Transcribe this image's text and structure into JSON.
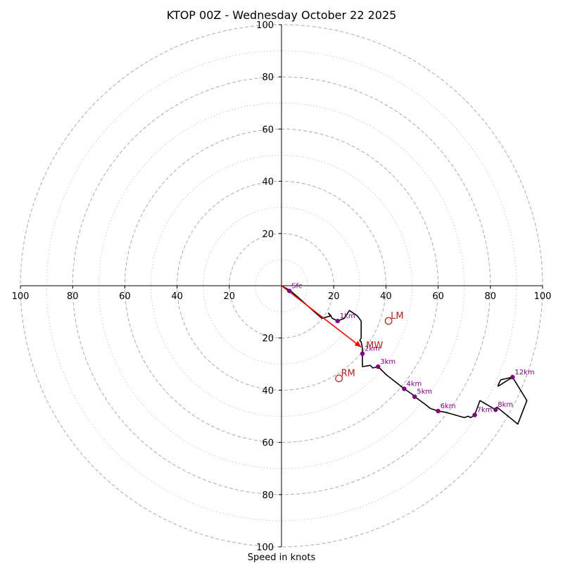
{
  "chart_data": {
    "type": "hodograph",
    "title": "KTOP 00Z - Wednesday October 22 2025",
    "xlabel": "Speed in knots",
    "units": "knots",
    "range": 100,
    "rings_major": [
      20,
      40,
      60,
      80,
      100
    ],
    "rings_minor": [
      10,
      30,
      50,
      70,
      90
    ],
    "x_ticks": [
      "100",
      "80",
      "60",
      "40",
      "20",
      "20",
      "40",
      "60",
      "80",
      "100"
    ],
    "x_tick_values": [
      -100,
      -80,
      -60,
      -40,
      -20,
      20,
      40,
      60,
      80,
      100
    ],
    "y_ticks_top": [
      "100",
      "80",
      "60",
      "40",
      "20"
    ],
    "y_ticks_top_values": [
      100,
      80,
      60,
      40,
      20
    ],
    "y_ticks_bottom": [
      "20",
      "40",
      "60",
      "80",
      "100"
    ],
    "y_ticks_bottom_values": [
      -20,
      -40,
      -60,
      -80,
      -100
    ],
    "trace": [
      [
        0,
        0
      ],
      [
        3.5,
        -2
      ],
      [
        7,
        -5
      ],
      [
        12,
        -9.5
      ],
      [
        15.5,
        -12.5
      ],
      [
        19,
        -11.5
      ],
      [
        18,
        -10.5
      ],
      [
        19.5,
        -12.5
      ],
      [
        21.5,
        -13.5
      ],
      [
        24,
        -12.5
      ],
      [
        26,
        -9.5
      ],
      [
        29,
        -11.5
      ],
      [
        30.5,
        -13.5
      ],
      [
        30.5,
        -20
      ],
      [
        30,
        -21
      ],
      [
        30.5,
        -21.5
      ],
      [
        31,
        -24
      ],
      [
        31,
        -26
      ],
      [
        31,
        -31
      ],
      [
        34,
        -30.5
      ],
      [
        35,
        -31.5
      ],
      [
        37,
        -31
      ],
      [
        40,
        -34
      ],
      [
        44.5,
        -37.5
      ],
      [
        47,
        -39.5
      ],
      [
        50,
        -41.5
      ],
      [
        51,
        -42.5
      ],
      [
        54.5,
        -45
      ],
      [
        57,
        -47
      ],
      [
        60,
        -48
      ],
      [
        63,
        -48.5
      ],
      [
        70,
        -50.5
      ],
      [
        71.5,
        -50
      ],
      [
        72.5,
        -50.5
      ],
      [
        74,
        -49.5
      ],
      [
        76,
        -44
      ],
      [
        82,
        -47.5
      ],
      [
        82.5,
        -46.5
      ],
      [
        90.5,
        -53
      ],
      [
        94,
        -44
      ],
      [
        88.5,
        -35
      ],
      [
        84,
        -36
      ],
      [
        83,
        -38
      ],
      [
        83,
        -38.5
      ],
      [
        88.5,
        -35
      ]
    ],
    "height_markers": [
      {
        "label": "Sfc",
        "u": 3,
        "v": -2
      },
      {
        "label": "1km",
        "u": 21.5,
        "v": -13.5
      },
      {
        "label": "2km",
        "u": 31,
        "v": -26
      },
      {
        "label": "3km",
        "u": 37,
        "v": -31
      },
      {
        "label": "4km",
        "u": 47,
        "v": -39.5
      },
      {
        "label": "5km",
        "u": 51,
        "v": -42.5
      },
      {
        "label": "6km",
        "u": 60,
        "v": -48
      },
      {
        "label": "7km",
        "u": 74,
        "v": -49.5
      },
      {
        "label": "8km",
        "u": 82,
        "v": -47.5
      },
      {
        "label": "12km",
        "u": 88.5,
        "v": -35
      }
    ],
    "storm_motion": [
      {
        "label": "LM",
        "u": 41,
        "v": -13.5
      },
      {
        "label": "RM",
        "u": 22,
        "v": -35.5
      }
    ],
    "mean_wind": {
      "label": "MW",
      "u": 30.5,
      "v": -23.5
    },
    "colors": {
      "trace": "#000000",
      "height_marker": "#800080",
      "storm_motion": "#b22222",
      "mean_wind_arrow": "#ff0000",
      "ring": "#aaaaaa",
      "axis": "#000000"
    }
  }
}
